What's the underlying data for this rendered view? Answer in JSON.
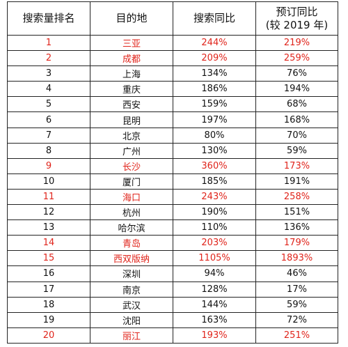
{
  "table": {
    "headers": {
      "rank": "搜索量排名",
      "destination": "目的地",
      "search_yoy": "搜索同比",
      "booking_yoy_line1": "预订同比",
      "booking_yoy_line2": "(较 2019 年)"
    },
    "highlight_color": "#e0241b",
    "rows": [
      {
        "rank": "1",
        "destination": "三亚",
        "search_yoy": "244%",
        "booking_yoy": "219%",
        "highlighted": true
      },
      {
        "rank": "2",
        "destination": "成都",
        "search_yoy": "209%",
        "booking_yoy": "259%",
        "highlighted": true
      },
      {
        "rank": "3",
        "destination": "上海",
        "search_yoy": "134%",
        "booking_yoy": "76%",
        "highlighted": false
      },
      {
        "rank": "4",
        "destination": "重庆",
        "search_yoy": "186%",
        "booking_yoy": "194%",
        "highlighted": false
      },
      {
        "rank": "5",
        "destination": "西安",
        "search_yoy": "159%",
        "booking_yoy": "68%",
        "highlighted": false
      },
      {
        "rank": "6",
        "destination": "昆明",
        "search_yoy": "197%",
        "booking_yoy": "168%",
        "highlighted": false
      },
      {
        "rank": "7",
        "destination": "北京",
        "search_yoy": "80%",
        "booking_yoy": "70%",
        "highlighted": false
      },
      {
        "rank": "8",
        "destination": "广州",
        "search_yoy": "130%",
        "booking_yoy": "59%",
        "highlighted": false
      },
      {
        "rank": "9",
        "destination": "长沙",
        "search_yoy": "360%",
        "booking_yoy": "173%",
        "highlighted": true
      },
      {
        "rank": "10",
        "destination": "厦门",
        "search_yoy": "185%",
        "booking_yoy": "191%",
        "highlighted": false
      },
      {
        "rank": "11",
        "destination": "海口",
        "search_yoy": "243%",
        "booking_yoy": "258%",
        "highlighted": true
      },
      {
        "rank": "12",
        "destination": "杭州",
        "search_yoy": "190%",
        "booking_yoy": "151%",
        "highlighted": false
      },
      {
        "rank": "13",
        "destination": "哈尔滨",
        "search_yoy": "110%",
        "booking_yoy": "136%",
        "highlighted": false
      },
      {
        "rank": "14",
        "destination": "青岛",
        "search_yoy": "203%",
        "booking_yoy": "179%",
        "highlighted": true
      },
      {
        "rank": "15",
        "destination": "西双版纳",
        "search_yoy": "1105%",
        "booking_yoy": "1893%",
        "highlighted": true
      },
      {
        "rank": "16",
        "destination": "深圳",
        "search_yoy": "94%",
        "booking_yoy": "46%",
        "highlighted": false
      },
      {
        "rank": "17",
        "destination": "南京",
        "search_yoy": "128%",
        "booking_yoy": "17%",
        "highlighted": false
      },
      {
        "rank": "18",
        "destination": "武汉",
        "search_yoy": "144%",
        "booking_yoy": "59%",
        "highlighted": false
      },
      {
        "rank": "19",
        "destination": "沈阳",
        "search_yoy": "163%",
        "booking_yoy": "72%",
        "highlighted": false
      },
      {
        "rank": "20",
        "destination": "丽江",
        "search_yoy": "193%",
        "booking_yoy": "251%",
        "highlighted": true
      }
    ]
  }
}
